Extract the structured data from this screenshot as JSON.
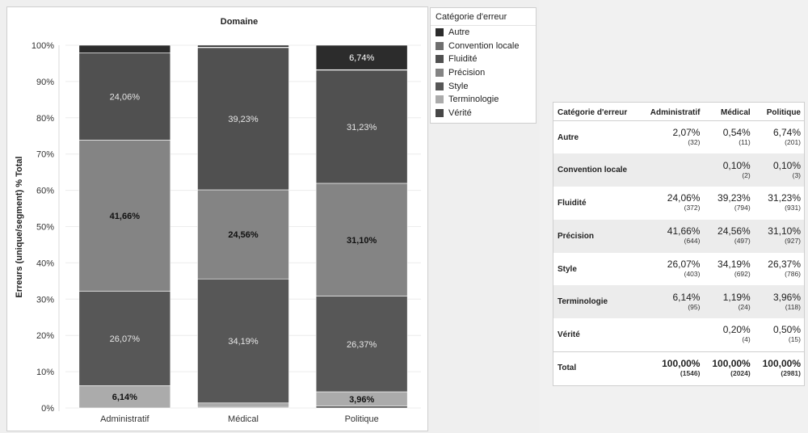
{
  "chart_data": {
    "type": "bar",
    "stacked": true,
    "title": "Domaine",
    "xlabel": "",
    "ylabel": "Erreurs (unique/segment) % Total",
    "ylim": [
      0,
      100
    ],
    "yticks": [
      "0%",
      "10%",
      "20%",
      "30%",
      "40%",
      "50%",
      "60%",
      "70%",
      "80%",
      "90%",
      "100%"
    ],
    "categories": [
      "Administratif",
      "Médical",
      "Politique"
    ],
    "legend_title": "Catégorie d'erreur",
    "legend_position": "right",
    "series": [
      {
        "name": "Vérité",
        "values": [
          0,
          0.2,
          0.5
        ],
        "labels": [
          "",
          "",
          ""
        ]
      },
      {
        "name": "Terminologie",
        "values": [
          6.14,
          1.19,
          3.96
        ],
        "labels": [
          "6,14%",
          "",
          "3,96%"
        ]
      },
      {
        "name": "Style",
        "values": [
          26.07,
          34.19,
          26.37
        ],
        "labels": [
          "26,07%",
          "34,19%",
          "26,37%"
        ]
      },
      {
        "name": "Précision",
        "values": [
          41.66,
          24.56,
          31.1
        ],
        "labels": [
          "41,66%",
          "24,56%",
          "31,10%"
        ]
      },
      {
        "name": "Fluidité",
        "values": [
          24.06,
          39.23,
          31.23
        ],
        "labels": [
          "24,06%",
          "39,23%",
          "31,23%"
        ]
      },
      {
        "name": "Convention locale",
        "values": [
          0,
          0.1,
          0.1
        ],
        "labels": [
          "",
          "",
          ""
        ]
      },
      {
        "name": "Autre",
        "values": [
          2.07,
          0.54,
          6.74
        ],
        "labels": [
          "",
          "",
          "6,74%"
        ]
      }
    ]
  },
  "legend": {
    "title": "Catégorie d'erreur",
    "items": [
      {
        "label": "Autre",
        "color": "#2c2c2c"
      },
      {
        "label": "Convention locale",
        "color": "#6e6e6e"
      },
      {
        "label": "Fluidité",
        "color": "#505050"
      },
      {
        "label": "Précision",
        "color": "#848484"
      },
      {
        "label": "Style",
        "color": "#575757"
      },
      {
        "label": "Terminologie",
        "color": "#ababab"
      },
      {
        "label": "Vérité",
        "color": "#474747"
      }
    ]
  },
  "table": {
    "headers": [
      "Catégorie d'erreur",
      "Administratif",
      "Médical",
      "Politique"
    ],
    "rows": [
      {
        "label": "Autre",
        "cells": [
          {
            "pct": "2,07%",
            "count": "(32)"
          },
          {
            "pct": "0,54%",
            "count": "(11)"
          },
          {
            "pct": "6,74%",
            "count": "(201)"
          }
        ]
      },
      {
        "label": "Convention locale",
        "cells": [
          {
            "pct": "",
            "count": ""
          },
          {
            "pct": "0,10%",
            "count": "(2)"
          },
          {
            "pct": "0,10%",
            "count": "(3)"
          }
        ]
      },
      {
        "label": "Fluidité",
        "cells": [
          {
            "pct": "24,06%",
            "count": "(372)"
          },
          {
            "pct": "39,23%",
            "count": "(794)"
          },
          {
            "pct": "31,23%",
            "count": "(931)"
          }
        ]
      },
      {
        "label": "Précision",
        "cells": [
          {
            "pct": "41,66%",
            "count": "(644)"
          },
          {
            "pct": "24,56%",
            "count": "(497)"
          },
          {
            "pct": "31,10%",
            "count": "(927)"
          }
        ]
      },
      {
        "label": "Style",
        "cells": [
          {
            "pct": "26,07%",
            "count": "(403)"
          },
          {
            "pct": "34,19%",
            "count": "(692)"
          },
          {
            "pct": "26,37%",
            "count": "(786)"
          }
        ]
      },
      {
        "label": "Terminologie",
        "cells": [
          {
            "pct": "6,14%",
            "count": "(95)"
          },
          {
            "pct": "1,19%",
            "count": "(24)"
          },
          {
            "pct": "3,96%",
            "count": "(118)"
          }
        ]
      },
      {
        "label": "Vérité",
        "cells": [
          {
            "pct": "",
            "count": ""
          },
          {
            "pct": "0,20%",
            "count": "(4)"
          },
          {
            "pct": "0,50%",
            "count": "(15)"
          }
        ]
      },
      {
        "label": "Total",
        "total": true,
        "cells": [
          {
            "pct": "100,00%",
            "count": "(1546)"
          },
          {
            "pct": "100,00%",
            "count": "(2024)"
          },
          {
            "pct": "100,00%",
            "count": "(2981)"
          }
        ]
      }
    ]
  }
}
